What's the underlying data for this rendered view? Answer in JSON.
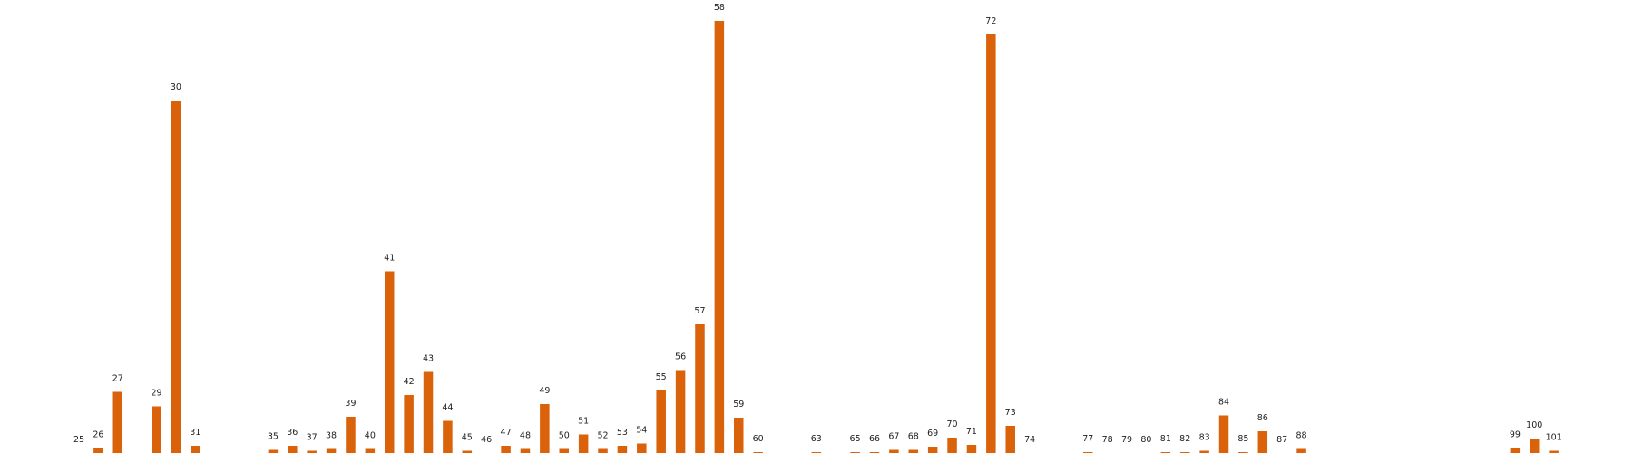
{
  "chart_data": {
    "type": "bar",
    "color": "#d9620b",
    "categories": [
      "25",
      "26",
      "27",
      null,
      "29",
      "30",
      "31",
      null,
      null,
      null,
      "35",
      "36",
      "37",
      "38",
      "39",
      "40",
      "41",
      "42",
      "43",
      "44",
      "45",
      "46",
      "47",
      "48",
      "49",
      "50",
      "51",
      "52",
      "53",
      "54",
      "55",
      "56",
      "57",
      "58",
      "59",
      "60",
      null,
      null,
      "63",
      null,
      "65",
      "66",
      "67",
      "68",
      "69",
      "70",
      "71",
      "72",
      "73",
      "74",
      null,
      null,
      "77",
      "78",
      "79",
      "80",
      "81",
      "82",
      "83",
      "84",
      "85",
      "86",
      "87",
      "88",
      null,
      null,
      null,
      null,
      null,
      null,
      null,
      null,
      null,
      null,
      "99",
      "100",
      "101"
    ],
    "values": [
      0,
      1.1,
      13.5,
      0,
      10.3,
      77.8,
      1.6,
      0,
      0,
      0,
      0.7,
      1.6,
      0.5,
      0.9,
      8.0,
      0.9,
      40.1,
      12.8,
      17.9,
      7.1,
      0.5,
      0,
      1.6,
      0.9,
      10.8,
      0.9,
      4.1,
      0.9,
      1.6,
      2.1,
      13.8,
      18.3,
      28.4,
      95.4,
      7.8,
      0.2,
      0,
      0,
      0.2,
      0,
      0.2,
      0.2,
      0.7,
      0.7,
      1.4,
      3.4,
      1.8,
      92.4,
      6.0,
      0,
      0,
      0,
      0.2,
      0,
      0,
      0,
      0.2,
      0.2,
      0.5,
      8.3,
      0.2,
      4.8,
      0,
      0.9,
      0,
      0,
      0,
      0,
      0,
      0,
      0,
      0,
      0,
      0,
      1.1,
      3.2,
      0.5
    ],
    "ylim": [
      0,
      100
    ]
  }
}
